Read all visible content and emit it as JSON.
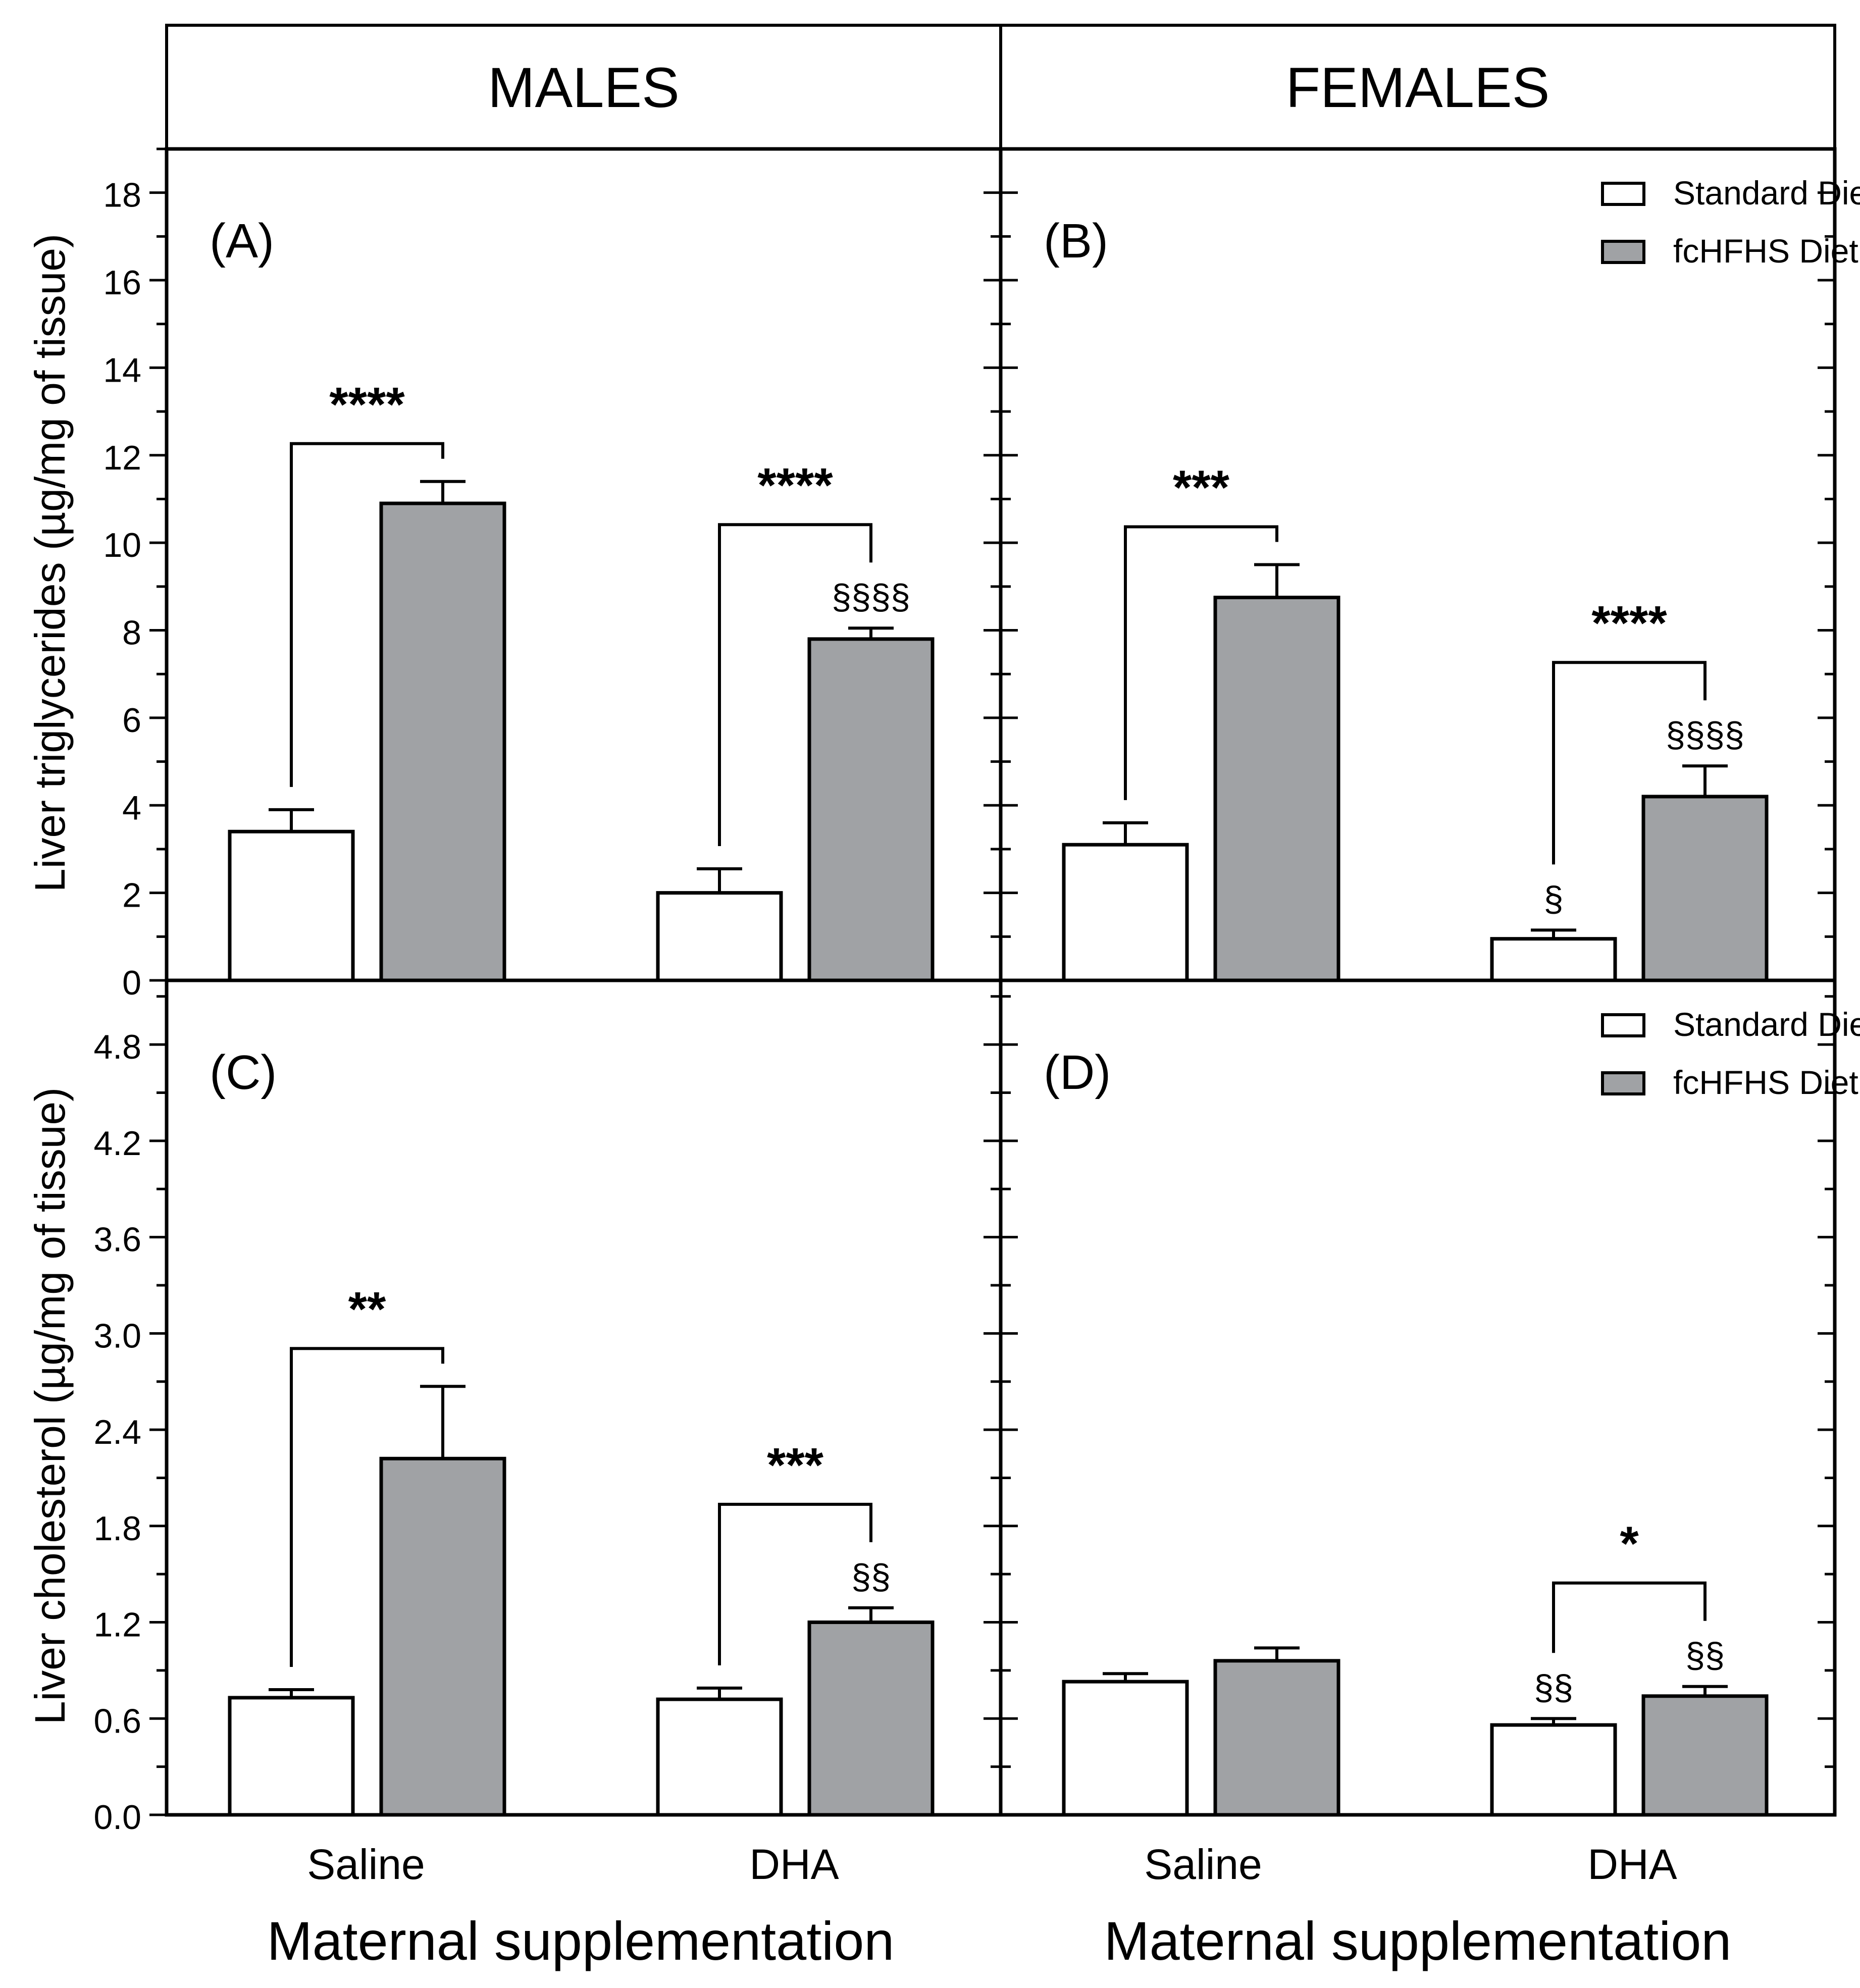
{
  "headers": {
    "males": "MALES",
    "females": "FEMALES"
  },
  "ylabels": {
    "triglycerides": "Liver triglycerides (µg/mg of tissue)",
    "cholesterol": "Liver cholesterol (µg/mg of tissue)"
  },
  "xlabel": "Maternal supplementation",
  "categories": [
    "Saline",
    "DHA"
  ],
  "colors": {
    "standard": "#ffffff",
    "fchfhs": "#a0a2a5",
    "stroke": "#000000"
  },
  "chart_data": [
    {
      "panel": "(A)",
      "type": "bar",
      "sex": "MALES",
      "title": "MALES",
      "ylabel": "Liver triglycerides (µg/mg of tissue)",
      "xlabel": "Maternal supplementation",
      "categories": [
        "Saline",
        "DHA"
      ],
      "ylim": [
        0,
        19
      ],
      "yticks": [
        0,
        2,
        4,
        6,
        8,
        10,
        12,
        14,
        16,
        18
      ],
      "ytick_labels": [
        "0",
        "2",
        "4",
        "6",
        "8",
        "10",
        "12",
        "14",
        "16",
        "18"
      ],
      "series": [
        {
          "name": "Standard Diet",
          "values": [
            3.4,
            2.0
          ],
          "errors": [
            0.5,
            0.55
          ]
        },
        {
          "name": "fcHFHS Diet",
          "values": [
            10.9,
            7.8
          ],
          "errors": [
            0.5,
            0.25
          ]
        }
      ],
      "significance": [
        "****",
        "****"
      ],
      "markers": {
        "Standard Diet": [
          "",
          ""
        ],
        "fcHFHS Diet": [
          "",
          "§§§§"
        ]
      },
      "legend": null
    },
    {
      "panel": "(B)",
      "type": "bar",
      "sex": "FEMALES",
      "title": "FEMALES",
      "ylabel": "Liver triglycerides (µg/mg of tissue)",
      "xlabel": "Maternal supplementation",
      "categories": [
        "Saline",
        "DHA"
      ],
      "ylim": [
        0,
        19
      ],
      "yticks": [
        0,
        2,
        4,
        6,
        8,
        10,
        12,
        14,
        16,
        18
      ],
      "series": [
        {
          "name": "Standard Diet",
          "values": [
            3.1,
            0.95
          ],
          "errors": [
            0.5,
            0.2
          ]
        },
        {
          "name": "fcHFHS Diet",
          "values": [
            8.75,
            4.2
          ],
          "errors": [
            0.75,
            0.7
          ]
        }
      ],
      "significance": [
        "***",
        "****"
      ],
      "markers": {
        "Standard Diet": [
          "",
          "§"
        ],
        "fcHFHS Diet": [
          "",
          "§§§§"
        ]
      },
      "legend": [
        "Standard Diet",
        "fcHFHS Diet"
      ],
      "legend_position": "top-right"
    },
    {
      "panel": "(C)",
      "type": "bar",
      "sex": "MALES",
      "ylabel": "Liver cholesterol (µg/mg of tissue)",
      "xlabel": "Maternal supplementation",
      "categories": [
        "Saline",
        "DHA"
      ],
      "ylim": [
        0,
        5.2
      ],
      "yticks": [
        0,
        0.6,
        1.2,
        1.8,
        2.4,
        3.0,
        3.6,
        4.2,
        4.8
      ],
      "ytick_labels": [
        "0.0",
        "0.6",
        "1.2",
        "1.8",
        "2.4",
        "3.0",
        "3.6",
        "4.2",
        "4.8"
      ],
      "series": [
        {
          "name": "Standard Diet",
          "values": [
            0.73,
            0.72
          ],
          "errors": [
            0.05,
            0.07
          ]
        },
        {
          "name": "fcHFHS Diet",
          "values": [
            2.22,
            1.2
          ],
          "errors": [
            0.45,
            0.09
          ]
        }
      ],
      "significance": [
        "**",
        "***"
      ],
      "markers": {
        "Standard Diet": [
          "",
          ""
        ],
        "fcHFHS Diet": [
          "",
          "§§"
        ]
      },
      "legend": null
    },
    {
      "panel": "(D)",
      "type": "bar",
      "sex": "FEMALES",
      "ylabel": "Liver cholesterol (µg/mg of tissue)",
      "xlabel": "Maternal supplementation",
      "categories": [
        "Saline",
        "DHA"
      ],
      "ylim": [
        0,
        5.2
      ],
      "yticks": [
        0,
        0.6,
        1.2,
        1.8,
        2.4,
        3.0,
        3.6,
        4.2,
        4.8
      ],
      "series": [
        {
          "name": "Standard Diet",
          "values": [
            0.83,
            0.56
          ],
          "errors": [
            0.05,
            0.04
          ]
        },
        {
          "name": "fcHFHS Diet",
          "values": [
            0.96,
            0.74
          ],
          "errors": [
            0.08,
            0.06
          ]
        }
      ],
      "significance": [
        "",
        "*"
      ],
      "markers": {
        "Standard Diet": [
          "",
          "§§"
        ],
        "fcHFHS Diet": [
          "",
          "§§"
        ]
      },
      "legend": [
        "Standard Diet",
        "fcHFHS Diet"
      ],
      "legend_position": "top-right"
    }
  ]
}
